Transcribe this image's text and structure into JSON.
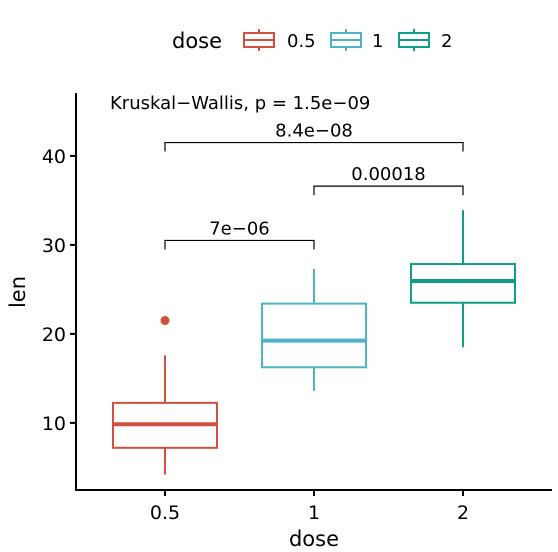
{
  "chart_data": {
    "type": "boxplot",
    "xlabel": "dose",
    "ylabel": "len",
    "categories": [
      "0.5",
      "1",
      "2"
    ],
    "ylim": [
      2,
      46
    ],
    "y_ticks": [
      10,
      20,
      30,
      40
    ],
    "colors": [
      "#D2503F",
      "#4DB4C8",
      "#0E9F87"
    ],
    "legend": {
      "title": "dose",
      "position": "top",
      "entries": [
        "0.5",
        "1",
        "2"
      ]
    },
    "boxes": [
      {
        "category": "0.5",
        "min": 4.2,
        "q1": 7.2,
        "median": 9.85,
        "q3": 12.25,
        "max": 17.6,
        "outliers": [
          21.5
        ]
      },
      {
        "category": "1",
        "min": 13.6,
        "q1": 16.25,
        "median": 19.25,
        "q3": 23.4,
        "max": 27.3,
        "outliers": []
      },
      {
        "category": "2",
        "min": 18.5,
        "q1": 23.5,
        "median": 25.95,
        "q3": 27.85,
        "max": 33.9,
        "outliers": []
      }
    ],
    "overall_test": "Kruskal−Wallis, p = 1.5e−09",
    "comparisons": [
      {
        "group1": "0.5",
        "group2": "1",
        "label": "7e−06",
        "y": 30.5
      },
      {
        "group1": "1",
        "group2": "2",
        "label": "0.00018",
        "y": 36.6
      },
      {
        "group1": "0.5",
        "group2": "2",
        "label": "8.4e−08",
        "y": 41.5
      }
    ],
    "grid": false
  }
}
